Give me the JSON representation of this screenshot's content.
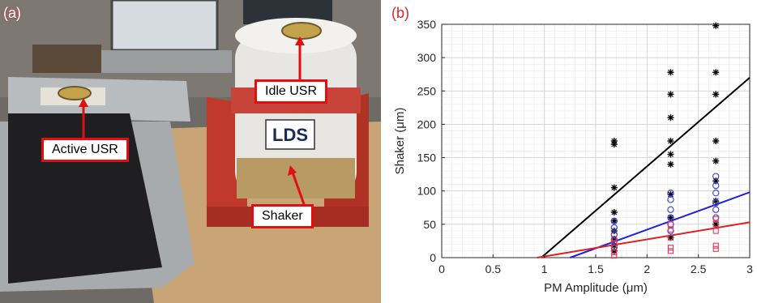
{
  "panels": {
    "a_label": "(a)",
    "b_label": "(b)"
  },
  "photo": {
    "callouts": {
      "idle": "Idle USR",
      "active": "Active USR",
      "shaker": "Shaker"
    },
    "shaker_brand": "LDS",
    "colors": {
      "callout_border": "#e01010",
      "shaker_red": "#c0392b",
      "wood": "#caa675"
    }
  },
  "chart_data": {
    "type": "scatter",
    "title": "",
    "xlabel": "PM Amplitude (μm)",
    "ylabel": "Shaker (μm)",
    "xlim": [
      0,
      3
    ],
    "ylim": [
      0,
      350
    ],
    "xticks": [
      0,
      0.5,
      1,
      1.5,
      2,
      2.5,
      3
    ],
    "xtick_labels": [
      "0",
      "0.5",
      "1",
      "1.5",
      "2",
      "2.5",
      "3"
    ],
    "yticks": [
      0,
      50,
      100,
      150,
      200,
      250,
      300,
      350
    ],
    "ytick_labels": [
      "0",
      "50",
      "100",
      "150",
      "200",
      "250",
      "300",
      "350"
    ],
    "grid": true,
    "minor_grid": true,
    "series": [
      {
        "marker": "star",
        "color": "#000000",
        "points": [
          [
            1.68,
            175
          ],
          [
            1.68,
            170
          ],
          [
            1.68,
            105
          ],
          [
            1.68,
            68
          ],
          [
            1.68,
            55
          ],
          [
            1.68,
            40
          ],
          [
            1.68,
            28
          ],
          [
            1.68,
            18
          ],
          [
            1.68,
            10
          ],
          [
            2.23,
            278
          ],
          [
            2.23,
            245
          ],
          [
            2.23,
            210
          ],
          [
            2.23,
            175
          ],
          [
            2.23,
            155
          ],
          [
            2.23,
            140
          ],
          [
            2.23,
            95
          ],
          [
            2.23,
            60
          ],
          [
            2.23,
            30
          ],
          [
            2.67,
            348
          ],
          [
            2.67,
            278
          ],
          [
            2.67,
            245
          ],
          [
            2.67,
            175
          ],
          [
            2.67,
            145
          ],
          [
            2.67,
            115
          ],
          [
            2.67,
            85
          ],
          [
            2.67,
            50
          ]
        ]
      },
      {
        "marker": "circle",
        "color": "#3b3bdb",
        "points": [
          [
            1.68,
            55
          ],
          [
            1.68,
            45
          ],
          [
            1.68,
            35
          ],
          [
            1.68,
            25
          ],
          [
            1.68,
            15
          ],
          [
            2.23,
            97
          ],
          [
            2.23,
            87
          ],
          [
            2.23,
            72
          ],
          [
            2.23,
            60
          ],
          [
            2.23,
            50
          ],
          [
            2.23,
            40
          ],
          [
            2.67,
            122
          ],
          [
            2.67,
            108
          ],
          [
            2.67,
            97
          ],
          [
            2.67,
            82
          ],
          [
            2.67,
            72
          ],
          [
            2.67,
            60
          ]
        ]
      },
      {
        "marker": "square",
        "color": "#e03b5a",
        "points": [
          [
            1.68,
            28
          ],
          [
            1.68,
            22
          ],
          [
            1.68,
            15
          ],
          [
            1.68,
            8
          ],
          [
            1.68,
            3
          ],
          [
            2.23,
            50
          ],
          [
            2.23,
            42
          ],
          [
            2.23,
            30
          ],
          [
            2.23,
            15
          ],
          [
            2.23,
            10
          ],
          [
            2.67,
            58
          ],
          [
            2.67,
            50
          ],
          [
            2.67,
            40
          ],
          [
            2.67,
            18
          ],
          [
            2.67,
            13
          ]
        ]
      }
    ],
    "fit_lines": [
      {
        "color": "#000000",
        "x": [
          0.97,
          3
        ],
        "y": [
          0,
          270
        ]
      },
      {
        "color": "#2020e0",
        "x": [
          1.25,
          3
        ],
        "y": [
          0,
          98
        ]
      },
      {
        "color": "#e02020",
        "x": [
          0.93,
          3
        ],
        "y": [
          0,
          53
        ]
      }
    ]
  }
}
